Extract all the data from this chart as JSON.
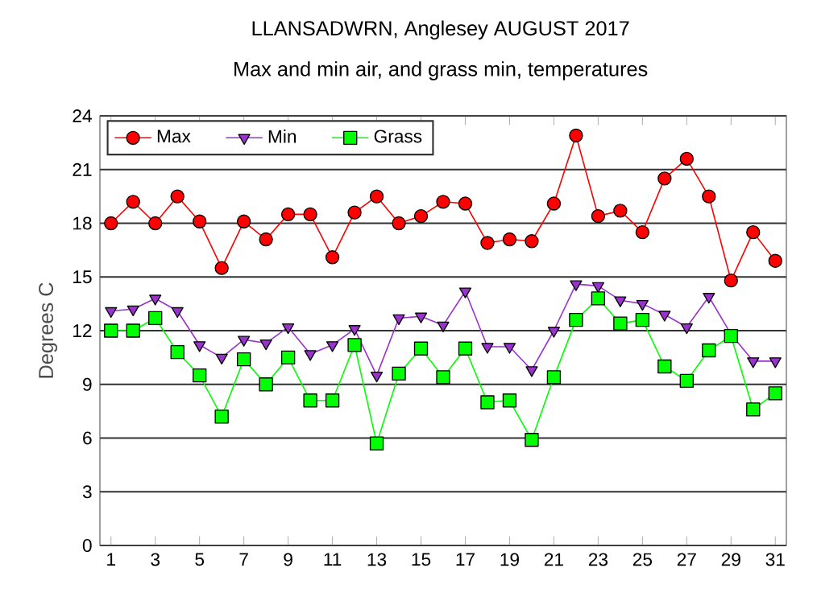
{
  "chart_data": {
    "type": "line",
    "title": "LLANSADWRN, Anglesey AUGUST 2017",
    "subtitle": "Max and min air, and grass min, temperatures",
    "ylabel": "Degrees C",
    "x": [
      1,
      2,
      3,
      4,
      5,
      6,
      7,
      8,
      9,
      10,
      11,
      12,
      13,
      14,
      15,
      16,
      17,
      18,
      19,
      20,
      21,
      22,
      23,
      24,
      25,
      26,
      27,
      28,
      29,
      30,
      31
    ],
    "xlim": [
      0.5,
      31.5
    ],
    "xticks": [
      1,
      3,
      5,
      7,
      9,
      11,
      13,
      15,
      17,
      19,
      21,
      23,
      25,
      27,
      29,
      31
    ],
    "ylim": [
      0,
      24
    ],
    "yticks": [
      0,
      3,
      6,
      9,
      12,
      15,
      18,
      21,
      24
    ],
    "grid": "y",
    "legend": "top left",
    "series": [
      {
        "name": "Max",
        "color": "#ff0000",
        "marker": "circle",
        "values": [
          18.0,
          19.2,
          18.0,
          19.5,
          18.1,
          15.5,
          18.1,
          17.1,
          18.5,
          18.5,
          16.1,
          18.6,
          19.5,
          18.0,
          18.4,
          19.2,
          19.1,
          16.9,
          17.1,
          17.0,
          19.1,
          22.9,
          18.4,
          18.7,
          17.5,
          20.5,
          21.6,
          19.5,
          14.8,
          17.5,
          15.9
        ]
      },
      {
        "name": "Min",
        "color": "#9933cc",
        "marker": "triangle",
        "values": [
          13.1,
          13.2,
          13.8,
          13.1,
          11.2,
          10.5,
          11.5,
          11.3,
          12.2,
          10.7,
          11.2,
          12.1,
          9.5,
          12.7,
          12.8,
          12.3,
          14.2,
          11.1,
          11.1,
          9.8,
          12.0,
          14.6,
          14.5,
          13.7,
          13.5,
          12.9,
          12.2,
          13.9,
          11.8,
          10.3,
          10.3
        ]
      },
      {
        "name": "Grass",
        "color": "#00ff00",
        "marker": "square",
        "values": [
          12.0,
          12.0,
          12.7,
          10.8,
          9.5,
          7.2,
          10.4,
          9.0,
          10.5,
          8.1,
          8.1,
          11.2,
          5.7,
          9.6,
          11.0,
          9.4,
          11.0,
          8.0,
          8.1,
          5.9,
          9.4,
          12.6,
          13.8,
          12.4,
          12.6,
          10.0,
          9.2,
          10.9,
          11.7,
          7.6,
          8.5
        ]
      }
    ]
  }
}
